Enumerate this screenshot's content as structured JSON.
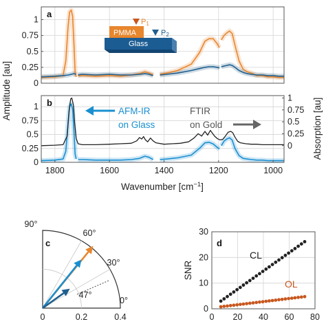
{
  "colors": {
    "orange": "#E8862D",
    "blue": "#1A8FD0",
    "darkblue": "#1F5F8E",
    "black": "#222222",
    "gray": "#666666",
    "rust": "#C8571E",
    "pmma": "#E8862D",
    "glass": "#1B5C93"
  },
  "chart_data": [
    {
      "panel": "a",
      "type": "line",
      "ylabel": "Amplitude [au]",
      "x_reversed": true,
      "xlim": [
        1850,
        960
      ],
      "ylim": [
        0,
        1.2
      ],
      "yticks": [
        "0",
        "0.25",
        "0.5",
        "0.75",
        "1"
      ],
      "yticks_values": [
        0,
        0.25,
        0.5,
        0.75,
        1
      ],
      "grid": true,
      "inset": {
        "pmma_label": "PMMA",
        "glass_label": "Glass",
        "p1_label": "P",
        "p1_sub": "1",
        "p2_label": "P",
        "p2_sub": "2"
      },
      "series": [
        {
          "color": "orange",
          "segments": [
            {
              "x": [
                1850,
                1800,
                1770,
                1760,
                1752,
                1746,
                1740,
                1735,
                1730,
                1726,
                1722
              ],
              "y": [
                0.09,
                0.1,
                0.12,
                0.35,
                0.88,
                1.12,
                1.15,
                1.05,
                0.6,
                0.18,
                0.1
              ]
            },
            {
              "x": [
                1715,
                1700,
                1650,
                1600,
                1560,
                1520,
                1490,
                1470,
                1455,
                1440
              ],
              "y": [
                0.12,
                0.12,
                0.11,
                0.12,
                0.11,
                0.13,
                0.15,
                0.18,
                0.16,
                0.13
              ]
            },
            {
              "x": [
                1415,
                1390,
                1350,
                1300,
                1270,
                1250,
                1235,
                1220,
                1205,
                1197
              ],
              "y": [
                0.14,
                0.16,
                0.2,
                0.3,
                0.48,
                0.66,
                0.7,
                0.7,
                0.62,
                0.56
              ]
            },
            {
              "x": [
                1190,
                1180,
                1170,
                1160,
                1150,
                1140,
                1125,
                1110,
                1095,
                1080,
                1060,
                1040,
                1020,
                1000,
                980,
                960
              ],
              "y": [
                0.68,
                0.75,
                0.79,
                0.82,
                0.78,
                0.6,
                0.35,
                0.22,
                0.18,
                0.16,
                0.12,
                0.12,
                0.1,
                0.1,
                0.09,
                0.09
              ]
            }
          ]
        },
        {
          "color": "darkblue",
          "segments": [
            {
              "x": [
                1850,
                1800,
                1770,
                1750,
                1740,
                1730,
                1722
              ],
              "y": [
                0.1,
                0.11,
                0.12,
                0.13,
                0.14,
                0.15,
                0.14
              ]
            },
            {
              "x": [
                1715,
                1700,
                1650,
                1600,
                1560,
                1520,
                1490,
                1470,
                1455,
                1440
              ],
              "y": [
                0.13,
                0.14,
                0.13,
                0.14,
                0.13,
                0.13,
                0.14,
                0.15,
                0.14,
                0.12
              ]
            },
            {
              "x": [
                1415,
                1390,
                1350,
                1300,
                1270,
                1250,
                1235,
                1220,
                1205,
                1197
              ],
              "y": [
                0.13,
                0.14,
                0.16,
                0.2,
                0.23,
                0.25,
                0.26,
                0.26,
                0.25,
                0.24
              ]
            },
            {
              "x": [
                1190,
                1180,
                1170,
                1160,
                1150,
                1140,
                1125,
                1110,
                1095,
                1080,
                1060,
                1040,
                1020,
                1000,
                980,
                960
              ],
              "y": [
                0.26,
                0.27,
                0.28,
                0.29,
                0.28,
                0.25,
                0.2,
                0.17,
                0.15,
                0.14,
                0.13,
                0.13,
                0.12,
                0.12,
                0.11,
                0.11
              ]
            }
          ]
        }
      ]
    },
    {
      "panel": "b",
      "type": "line",
      "ylabel": "Absorption [au]",
      "xlabel": "Wavenumber [cm",
      "xlabel_sup": "−1",
      "xlabel_tail": "]",
      "x_reversed": true,
      "xlim": [
        1850,
        960
      ],
      "xticks": [
        1800,
        1600,
        1400,
        1200,
        1000
      ],
      "left_ylim": [
        0,
        1.2
      ],
      "left_yticks": [
        "0",
        "0.25",
        "0.5",
        "0.75",
        "1"
      ],
      "left_yticks_values": [
        0,
        0.25,
        0.5,
        0.75,
        1
      ],
      "right_yticks": [
        "0",
        "0.25",
        "0.5",
        "0.75",
        "1"
      ],
      "right_yticks_values": [
        0,
        0.25,
        0.5,
        0.75,
        1
      ],
      "right_ylim": [
        -0.35,
        1.05
      ],
      "grid": true,
      "annotations": {
        "afm_line1": "AFM-IR",
        "afm_line2": "on Glass",
        "ftir_line1": "FTIR",
        "ftir_line2": "on Gold"
      },
      "series": [
        {
          "axis": "left",
          "color": "blue",
          "segments": [
            {
              "x": [
                1850,
                1800,
                1770,
                1760,
                1752,
                1746,
                1740,
                1735,
                1730,
                1726,
                1722
              ],
              "y": [
                0.03,
                0.04,
                0.06,
                0.2,
                0.7,
                1.0,
                1.05,
                0.95,
                0.55,
                0.15,
                0.06
              ]
            },
            {
              "x": [
                1715,
                1700,
                1650,
                1600,
                1560,
                1520,
                1490,
                1470,
                1455,
                1440
              ],
              "y": [
                0.05,
                0.05,
                0.04,
                0.04,
                0.04,
                0.05,
                0.07,
                0.11,
                0.09,
                0.05
              ]
            },
            {
              "x": [
                1415,
                1390,
                1350,
                1300,
                1270,
                1250,
                1235,
                1220,
                1205,
                1197
              ],
              "y": [
                0.05,
                0.06,
                0.08,
                0.13,
                0.25,
                0.35,
                0.36,
                0.33,
                0.27,
                0.24
              ]
            },
            {
              "x": [
                1190,
                1180,
                1170,
                1160,
                1150,
                1140,
                1125,
                1110,
                1095,
                1080,
                1060,
                1040,
                1020,
                1000,
                980,
                960
              ],
              "y": [
                0.3,
                0.38,
                0.42,
                0.44,
                0.4,
                0.25,
                0.12,
                0.07,
                0.06,
                0.05,
                0.04,
                0.04,
                0.03,
                0.03,
                0.03,
                0.03
              ]
            }
          ]
        },
        {
          "axis": "right",
          "color": "black",
          "segments": [
            {
              "x": [
                1850,
                1800,
                1770,
                1755,
                1748,
                1742,
                1738,
                1732,
                1728,
                1722,
                1715,
                1700,
                1650,
                1600,
                1560,
                1520,
                1500,
                1490,
                1482,
                1475,
                1468,
                1460,
                1450,
                1440,
                1430,
                1400,
                1370,
                1340,
                1310,
                1290,
                1275,
                1262,
                1250,
                1240,
                1230,
                1215,
                1205,
                1195,
                1185,
                1175,
                1165,
                1155,
                1148,
                1140,
                1130,
                1120,
                1100,
                1080,
                1060,
                1040,
                1020,
                1000,
                980,
                960
              ],
              "y": [
                0.0,
                0.01,
                0.02,
                0.2,
                0.75,
                0.98,
                1.0,
                0.85,
                0.5,
                0.15,
                0.04,
                0.02,
                0.02,
                0.03,
                0.04,
                0.05,
                0.1,
                0.17,
                0.14,
                0.19,
                0.12,
                0.08,
                0.16,
                0.1,
                0.06,
                0.03,
                0.04,
                0.05,
                0.08,
                0.16,
                0.25,
                0.2,
                0.3,
                0.22,
                0.32,
                0.2,
                0.15,
                0.12,
                0.13,
                0.2,
                0.28,
                0.3,
                0.27,
                0.18,
                0.09,
                0.06,
                0.04,
                0.03,
                0.03,
                0.02,
                0.02,
                0.02,
                0.02,
                0.02
              ]
            }
          ]
        }
      ]
    },
    {
      "panel": "c",
      "type": "polar",
      "angle_labels": [
        "90°",
        "60°",
        "30°",
        "0°"
      ],
      "r_ticks": [
        "0",
        "0.2",
        "0.4"
      ],
      "r_ticks_values": [
        0,
        0.2,
        0.4
      ],
      "rmax": 0.4,
      "annotation": "47°",
      "vectors": [
        {
          "color": "orange",
          "x": 0.26,
          "y": 0.32
        },
        {
          "color": "blue",
          "x": 0.2,
          "y": 0.25
        },
        {
          "color": "darkblue",
          "x": 0.14,
          "y": 0.1
        }
      ]
    },
    {
      "panel": "d",
      "type": "scatter",
      "ylabel": "SNR",
      "xlim": [
        0,
        80
      ],
      "ylim": [
        0,
        30
      ],
      "xticks": [
        0,
        20,
        40,
        60,
        80
      ],
      "yticks": [
        0,
        10,
        20,
        30
      ],
      "grid": true,
      "series": [
        {
          "name": "CL",
          "color": "black",
          "x_start": 7,
          "x_end": 73,
          "step": 2.5,
          "y_start": 3.0,
          "y_end": 26.5
        },
        {
          "name": "OL",
          "color": "rust",
          "x_start": 7,
          "x_end": 73,
          "step": 2.5,
          "y_start": 0.8,
          "y_end": 4.8
        }
      ]
    }
  ]
}
